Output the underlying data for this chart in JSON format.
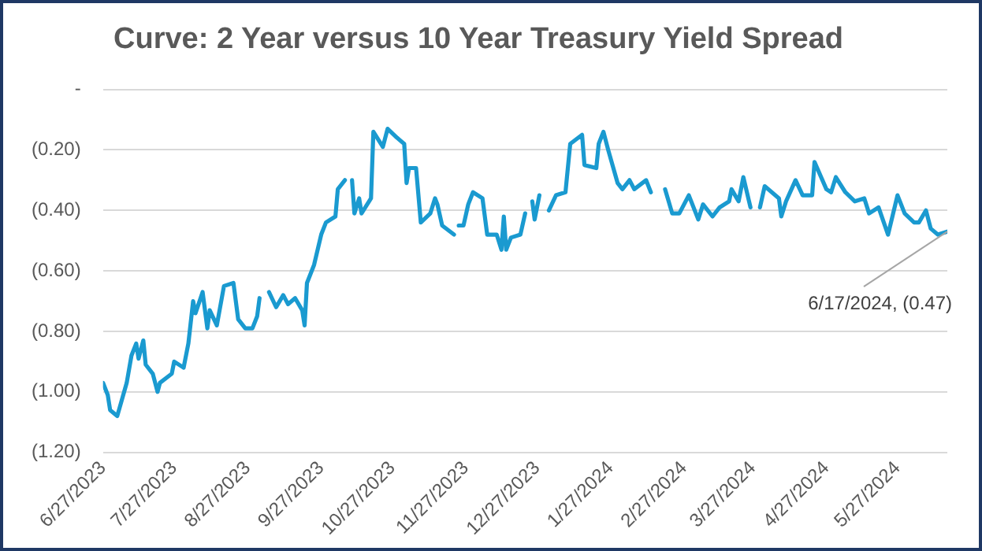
{
  "chart_data": {
    "type": "line",
    "title": "Curve: 2 Year versus 10 Year Treasury Yield Spread",
    "x": [
      "2023-06-27",
      "2023-06-29",
      "2023-06-30",
      "2023-07-03",
      "2023-07-07",
      "2023-07-09",
      "2023-07-11",
      "2023-07-12",
      "2023-07-14",
      "2023-07-15",
      "2023-07-18",
      "2023-07-20",
      "2023-07-21",
      "2023-07-26",
      "2023-07-27",
      "2023-07-31",
      "2023-08-02",
      "2023-08-04",
      "2023-08-05",
      "2023-08-08",
      "2023-08-10",
      "2023-08-11",
      "2023-08-14",
      "2023-08-17",
      "2023-08-21",
      "2023-08-23",
      "2023-08-26",
      "2023-08-29",
      "2023-08-31",
      "2023-09-01",
      "2023-09-03",
      "2023-09-05",
      "2023-09-08",
      "2023-09-11",
      "2023-09-13",
      "2023-09-16",
      "2023-09-19",
      "2023-09-20",
      "2023-09-21",
      "2023-09-24",
      "2023-09-27",
      "2023-09-29",
      "2023-10-03",
      "2023-10-04",
      "2023-10-07",
      "2023-10-08",
      "2023-10-10",
      "2023-10-11",
      "2023-10-13",
      "2023-10-14",
      "2023-10-18",
      "2023-10-19",
      "2023-10-23",
      "2023-10-25",
      "2023-10-29",
      "2023-11-01",
      "2023-11-02",
      "2023-11-03",
      "2023-11-06",
      "2023-11-08",
      "2023-11-12",
      "2023-11-14",
      "2023-11-15",
      "2023-11-17",
      "2023-11-22",
      "2023-11-23",
      "2023-11-24",
      "2023-11-26",
      "2023-11-28",
      "2023-11-30",
      "2023-12-04",
      "2023-12-06",
      "2023-12-10",
      "2023-12-12",
      "2023-12-13",
      "2023-12-14",
      "2023-12-16",
      "2023-12-20",
      "2023-12-22",
      "2023-12-23",
      "2023-12-25",
      "2023-12-26",
      "2023-12-28",
      "2023-12-30",
      "2024-01-01",
      "2024-01-04",
      "2024-01-08",
      "2024-01-10",
      "2024-01-15",
      "2024-01-16",
      "2024-01-21",
      "2024-01-22",
      "2024-01-24",
      "2024-01-26",
      "2024-01-30",
      "2024-02-01",
      "2024-02-04",
      "2024-02-06",
      "2024-02-11",
      "2024-02-13",
      "2024-02-16",
      "2024-02-19",
      "2024-02-22",
      "2024-02-25",
      "2024-02-29",
      "2024-03-04",
      "2024-03-06",
      "2024-03-10",
      "2024-03-13",
      "2024-03-17",
      "2024-03-18",
      "2024-03-21",
      "2024-03-23",
      "2024-03-26",
      "2024-03-28",
      "2024-03-30",
      "2024-04-01",
      "2024-04-07",
      "2024-04-08",
      "2024-04-10",
      "2024-04-14",
      "2024-04-17",
      "2024-04-21",
      "2024-04-22",
      "2024-04-27",
      "2024-04-29",
      "2024-05-01",
      "2024-05-05",
      "2024-05-09",
      "2024-05-13",
      "2024-05-15",
      "2024-05-19",
      "2024-05-23",
      "2024-05-27",
      "2024-05-30",
      "2024-06-03",
      "2024-06-05",
      "2024-06-08",
      "2024-06-10",
      "2024-06-13",
      "2024-06-17"
    ],
    "series": [
      {
        "color": "#1a9ad0",
        "values": [
          -0.97,
          -1.01,
          -1.06,
          -1.08,
          -0.97,
          -0.88,
          -0.84,
          -0.89,
          -0.83,
          -0.91,
          -0.94,
          -1.0,
          -0.97,
          -0.94,
          -0.9,
          -0.92,
          -0.84,
          -0.7,
          -0.74,
          -0.67,
          -0.79,
          -0.73,
          -0.78,
          -0.65,
          -0.64,
          -0.76,
          -0.79,
          -0.79,
          -0.75,
          -0.69,
          null,
          -0.67,
          -0.72,
          -0.68,
          -0.71,
          -0.69,
          -0.73,
          -0.78,
          -0.64,
          -0.58,
          -0.48,
          -0.44,
          -0.42,
          -0.33,
          -0.3,
          null,
          -0.3,
          -0.41,
          -0.36,
          -0.41,
          -0.36,
          -0.14,
          -0.19,
          -0.13,
          -0.16,
          -0.18,
          -0.31,
          -0.26,
          -0.26,
          -0.44,
          -0.41,
          -0.36,
          -0.38,
          -0.45,
          -0.48,
          null,
          -0.45,
          -0.45,
          -0.38,
          -0.34,
          -0.36,
          -0.48,
          -0.48,
          -0.53,
          -0.42,
          -0.53,
          -0.49,
          -0.48,
          -0.41,
          null,
          -0.37,
          -0.43,
          -0.35,
          null,
          -0.4,
          -0.35,
          -0.34,
          -0.18,
          -0.15,
          -0.25,
          -0.26,
          -0.18,
          -0.14,
          -0.2,
          -0.31,
          -0.33,
          -0.3,
          -0.33,
          -0.3,
          -0.34,
          null,
          -0.33,
          -0.41,
          -0.41,
          -0.35,
          -0.43,
          -0.38,
          -0.42,
          -0.39,
          -0.37,
          -0.33,
          -0.37,
          -0.29,
          -0.39,
          null,
          -0.39,
          -0.32,
          -0.36,
          -0.42,
          -0.37,
          -0.3,
          -0.35,
          -0.35,
          -0.24,
          -0.33,
          -0.34,
          -0.29,
          -0.34,
          -0.37,
          -0.36,
          -0.41,
          -0.39,
          -0.48,
          -0.35,
          -0.41,
          -0.44,
          -0.44,
          -0.4,
          -0.46,
          -0.48,
          -0.47
        ]
      }
    ],
    "ylim": [
      -1.2,
      0
    ],
    "yticks": [
      {
        "value": 0,
        "label": "-"
      },
      {
        "value": -0.2,
        "label": "(0.20)"
      },
      {
        "value": -0.4,
        "label": "(0.40)"
      },
      {
        "value": -0.6,
        "label": "(0.60)"
      },
      {
        "value": -0.8,
        "label": "(0.80)"
      },
      {
        "value": -1.0,
        "label": "(1.00)"
      },
      {
        "value": -1.2,
        "label": "(1.20)"
      }
    ],
    "xlim": [
      "2023-06-27",
      "2024-06-17"
    ],
    "xticks": [
      {
        "value": "2023-06-27",
        "label": "6/27/2023"
      },
      {
        "value": "2023-07-27",
        "label": "7/27/2023"
      },
      {
        "value": "2023-08-27",
        "label": "8/27/2023"
      },
      {
        "value": "2023-09-27",
        "label": "9/27/2023"
      },
      {
        "value": "2023-10-27",
        "label": "10/27/2023"
      },
      {
        "value": "2023-11-27",
        "label": "11/27/2023"
      },
      {
        "value": "2023-12-27",
        "label": "12/27/2023"
      },
      {
        "value": "2024-01-27",
        "label": "1/27/2024"
      },
      {
        "value": "2024-02-27",
        "label": "2/27/2024"
      },
      {
        "value": "2024-03-27",
        "label": "3/27/2024"
      },
      {
        "value": "2024-04-27",
        "label": "4/27/2024"
      },
      {
        "value": "2024-05-27",
        "label": "5/27/2024"
      }
    ],
    "grid": "y",
    "legend": false,
    "marker": "none",
    "line_style": "solid",
    "annotations": [
      {
        "text": "6/17/2024, (0.47)",
        "x": "2024-06-17",
        "y": -0.47
      }
    ]
  }
}
